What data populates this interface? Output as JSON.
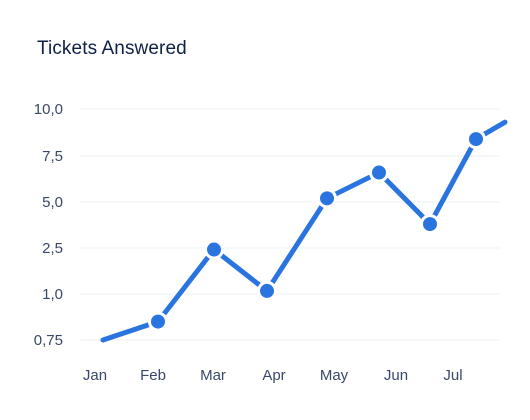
{
  "chart_data": {
    "type": "line",
    "title": "Tickets Answered",
    "xlabel": "",
    "ylabel": "",
    "categories": [
      "Jan",
      "Feb",
      "Mar",
      "Apr",
      "May",
      "Jun",
      "Jul"
    ],
    "yticks": [
      "10,0",
      "7,5",
      "5,0",
      "2,5",
      "1,0",
      "0,75"
    ],
    "series": [
      {
        "color": "#2a74e0",
        "points": [
          {
            "x": "Jan",
            "y": 0.75,
            "marker": false
          },
          {
            "x": "Feb",
            "y": 0.85,
            "marker": true
          },
          {
            "x": "Mar",
            "y": 2.45,
            "marker": true
          },
          {
            "x": "Apr",
            "y": 1.1,
            "marker": true
          },
          {
            "x": "May",
            "y": 5.2,
            "marker": true
          },
          {
            "x": "Jun",
            "y": 6.6,
            "marker": true
          },
          {
            "x": "Jun–Jul",
            "y": 3.8,
            "marker": true
          },
          {
            "x": "Jul",
            "y": 8.4,
            "marker": true
          },
          {
            "x": "after Jul",
            "y": 9.3,
            "marker": false
          }
        ]
      }
    ],
    "grid": true,
    "legend": "none",
    "y_scale": "categorical-ticks"
  }
}
